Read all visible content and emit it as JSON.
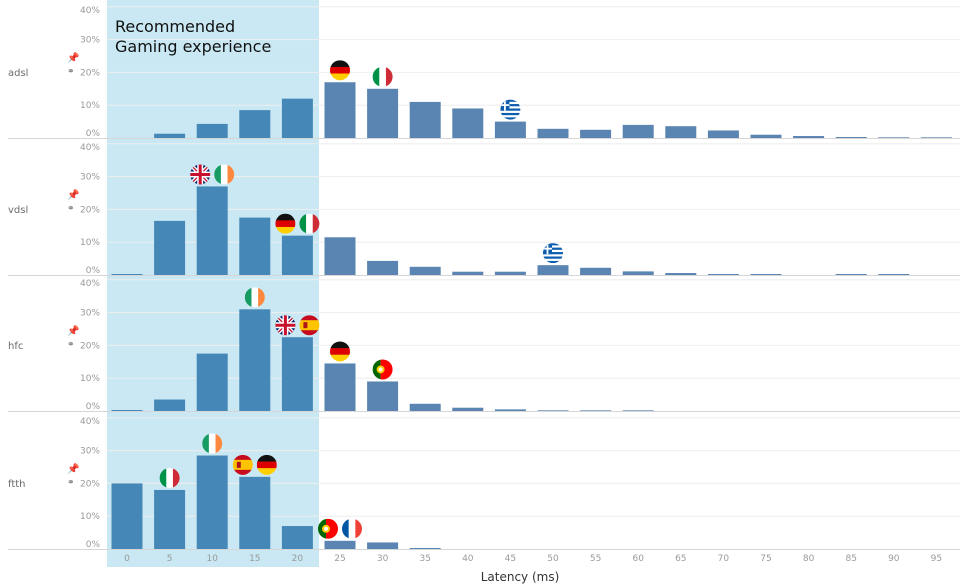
{
  "chart_data": {
    "type": "bar",
    "xlabel": "Latency (ms)",
    "ylabel": "",
    "ylim": [
      0,
      40
    ],
    "y_ticks": [
      "0%",
      "10%",
      "20%",
      "30%",
      "40%"
    ],
    "grid": true,
    "categories": [
      "0",
      "5",
      "10",
      "15",
      "20",
      "25",
      "30",
      "35",
      "40",
      "45",
      "50",
      "55",
      "60",
      "65",
      "70",
      "75",
      "80",
      "85",
      "90",
      "95"
    ],
    "highlight": {
      "label_lines": [
        "Recommended",
        "Gaming experience"
      ],
      "from": "0",
      "to": "20",
      "color": "#c9e8f3"
    },
    "colors": {
      "bar_in_highlight": "#4588b7",
      "bar": "#5a84b1"
    },
    "series": [
      {
        "name": "adsl",
        "values": [
          0,
          1.3,
          4.3,
          8.5,
          12,
          17,
          15,
          11,
          9,
          5,
          2.8,
          2.5,
          4,
          3.6,
          2.3,
          1,
          0.6,
          0.3,
          0.2,
          0.2
        ],
        "flags": [
          {
            "country": "DE",
            "category": "25"
          },
          {
            "country": "IT",
            "category": "30"
          },
          {
            "country": "GR",
            "category": "45"
          }
        ]
      },
      {
        "name": "vdsl",
        "values": [
          0.3,
          16.5,
          27,
          17.5,
          12,
          11.5,
          4.3,
          2.5,
          1,
          1,
          3,
          2.2,
          1.1,
          0.6,
          0.3,
          0.3,
          0,
          0.3,
          0.3,
          0
        ],
        "flags": [
          {
            "country": "GB",
            "category": "10",
            "side": -1
          },
          {
            "country": "IE",
            "category": "10",
            "side": 1
          },
          {
            "country": "DE",
            "category": "20",
            "side": -1
          },
          {
            "country": "IT",
            "category": "20",
            "side": 1
          },
          {
            "country": "GR",
            "category": "50"
          }
        ]
      },
      {
        "name": "hfc",
        "values": [
          0.3,
          3.5,
          17.5,
          31,
          22.5,
          14.5,
          9,
          2.2,
          1,
          0.5,
          0.2,
          0.2,
          0.2,
          0,
          0,
          0,
          0,
          0,
          0,
          0
        ],
        "flags": [
          {
            "country": "IE",
            "category": "15"
          },
          {
            "country": "GB",
            "category": "20",
            "side": -1
          },
          {
            "country": "ES",
            "category": "20",
            "side": 1
          },
          {
            "country": "DE",
            "category": "25"
          },
          {
            "country": "PT",
            "category": "30"
          }
        ]
      },
      {
        "name": "ftth",
        "values": [
          20,
          18,
          28.5,
          22,
          7,
          2.5,
          2,
          0.3,
          0,
          0,
          0,
          0,
          0,
          0,
          0,
          0,
          0,
          0,
          0,
          0
        ],
        "flags": [
          {
            "country": "IT",
            "category": "5"
          },
          {
            "country": "IE",
            "category": "10"
          },
          {
            "country": "ES",
            "category": "15",
            "side": -1
          },
          {
            "country": "DE",
            "category": "15",
            "side": 1
          },
          {
            "country": "PT",
            "category": "25",
            "side": -1
          },
          {
            "country": "FR",
            "category": "25",
            "side": 1
          }
        ]
      }
    ]
  }
}
